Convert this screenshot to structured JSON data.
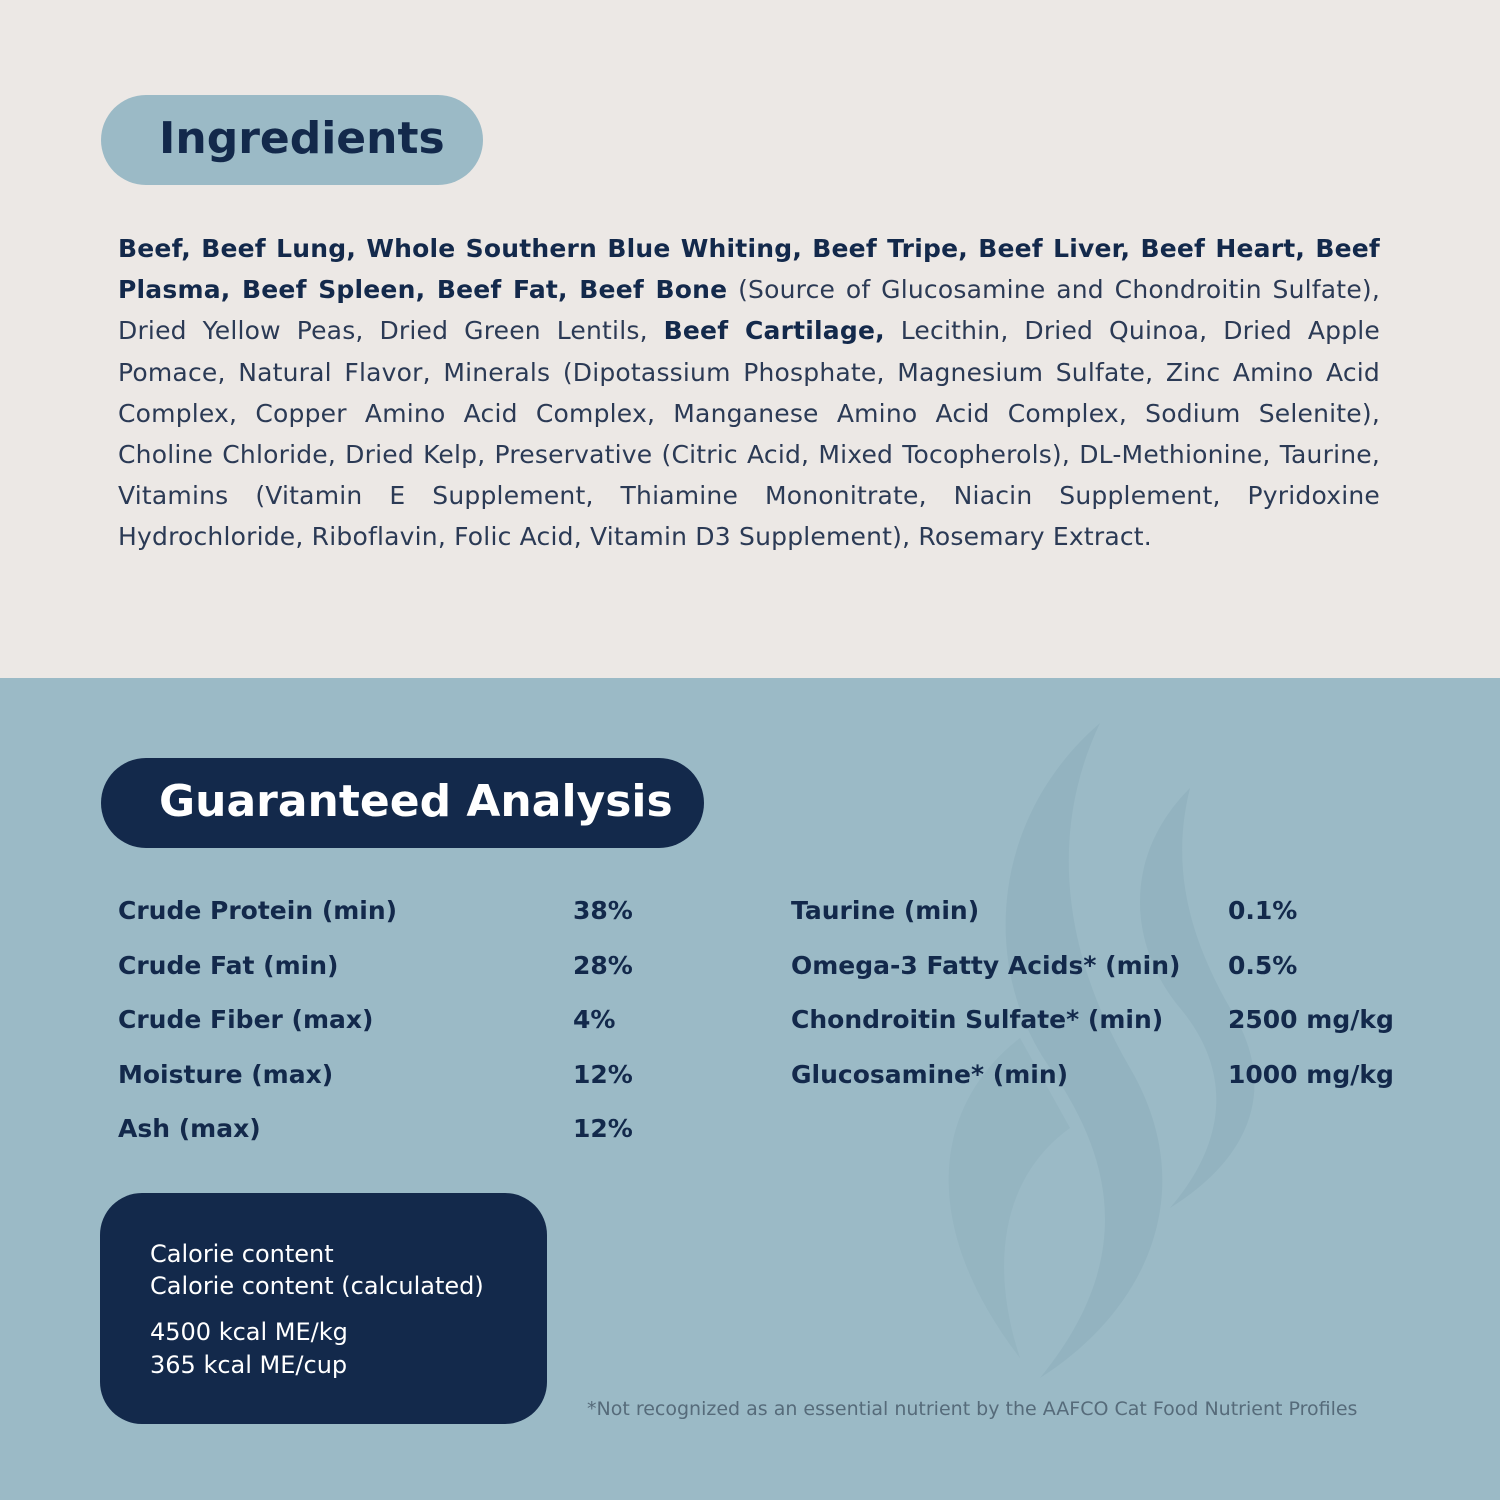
{
  "ingredients": {
    "title": "Ingredients",
    "segments": [
      {
        "text": "Beef, Beef Lung, Whole Southern Blue Whiting, Beef Tripe, Beef Liver, Beef Heart, Beef Plasma, Beef Spleen, Beef Fat, Beef Bone",
        "bold": true
      },
      {
        "text": " (Source of Glucosamine and Chondroitin Sulfate), Dried Yellow Peas, Dried Green Lentils, ",
        "bold": false
      },
      {
        "text": "Beef Cartilage,",
        "bold": true
      },
      {
        "text": " Lecithin, Dried Quinoa, Dried Apple Pomace, Natural Flavor, Minerals (Dipotassium Phosphate, Magnesium Sulfate, Zinc Amino Acid Complex, Copper Amino Acid Complex, Manganese Amino Acid Complex, Sodium Selenite), Choline Chloride, Dried Kelp, Preservative (Citric Acid, Mixed Tocopherols), DL-Methionine, Taurine, Vitamins (Vitamin E Supplement, Thiamine Mononitrate, Niacin Supplement, Pyridoxine Hydrochloride, Riboflavin, Folic Acid, Vitamin D3 Supplement), Rosemary Extract.",
        "bold": false
      }
    ]
  },
  "analysis": {
    "title": "Guaranteed Analysis",
    "left": [
      {
        "label": "Crude Protein (min)",
        "value": "38%"
      },
      {
        "label": "Crude Fat (min)",
        "value": "28%"
      },
      {
        "label": "Crude Fiber (max)",
        "value": "4%"
      },
      {
        "label": "Moisture (max)",
        "value": "12%"
      },
      {
        "label": "Ash (max)",
        "value": "12%"
      }
    ],
    "right": [
      {
        "label": "Taurine (min)",
        "value": "0.1%"
      },
      {
        "label": "Omega-3 Fatty Acids* (min)",
        "value": "0.5%"
      },
      {
        "label": "Chondroitin Sulfate* (min)",
        "value": "2500 mg/kg"
      },
      {
        "label": "Glucosamine* (min)",
        "value": "1000 mg/kg"
      }
    ],
    "calorie": {
      "line1": "Calorie content",
      "line2": "Calorie content (calculated)",
      "line3": "4500 kcal ME/kg",
      "line4": "365 kcal ME/cup"
    },
    "footnote": "*Not recognized as an essential nutrient by the AAFCO Cat Food Nutrient Profiles"
  },
  "colors": {
    "navy": "#13294b",
    "light_blue": "#9bbac6",
    "cream": "#ece8e5"
  },
  "icons": [
    "flame-watermark-icon"
  ]
}
